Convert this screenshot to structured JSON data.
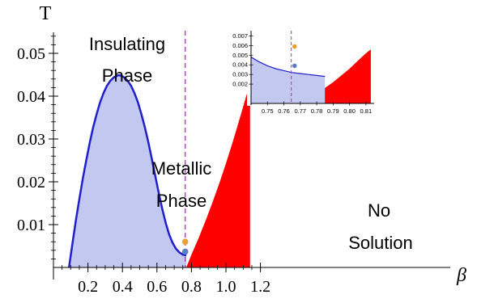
{
  "chart_data": {
    "type": "area",
    "xlabel": "β",
    "ylabel": "T",
    "xlim": [
      0,
      1.25
    ],
    "ylim": [
      0,
      0.057
    ],
    "xticks": [
      "0.2",
      "0.4",
      "0.6",
      "0.8",
      "1.0",
      "1.2"
    ],
    "yticks": [
      "0.01",
      "0.02",
      "0.03",
      "0.04",
      "0.05"
    ],
    "region_labels": {
      "insulating_line1": "Insulating",
      "insulating_line2": "Phase",
      "metallic_line1": "Metallic",
      "metallic_line2": "Phase",
      "nosolution_line1": "No",
      "nosolution_line2": "Solution"
    },
    "series": [
      {
        "kind": "boundary",
        "color": "#1f1fcc",
        "fill": "#c3c8f0",
        "x": [
          0.09,
          0.11,
          0.13,
          0.15,
          0.17,
          0.19,
          0.21,
          0.23,
          0.25,
          0.27,
          0.29,
          0.31,
          0.33,
          0.35,
          0.37,
          0.38,
          0.39,
          0.41,
          0.43,
          0.45,
          0.47,
          0.49,
          0.51,
          0.53,
          0.55,
          0.57,
          0.59,
          0.61,
          0.63,
          0.65,
          0.67,
          0.69,
          0.71,
          0.73,
          0.75,
          0.77
        ],
        "y": [
          0.0,
          0.0055,
          0.011,
          0.016,
          0.0207,
          0.025,
          0.029,
          0.0327,
          0.0358,
          0.0385,
          0.0407,
          0.0424,
          0.0436,
          0.0444,
          0.0448,
          0.0449,
          0.0448,
          0.0444,
          0.0436,
          0.0424,
          0.0407,
          0.0385,
          0.0358,
          0.0327,
          0.0292,
          0.0254,
          0.0214,
          0.0175,
          0.0138,
          0.0105,
          0.0078,
          0.0058,
          0.0044,
          0.0035,
          0.003,
          0.0028
        ]
      },
      {
        "kind": "no-solution",
        "color": "#ff0000",
        "x": [
          0.77,
          0.8,
          0.84,
          0.88,
          0.92,
          0.96,
          1.0,
          1.04,
          1.08,
          1.12,
          1.14
        ],
        "y": [
          0.0,
          0.003,
          0.0067,
          0.0107,
          0.015,
          0.0195,
          0.0243,
          0.0294,
          0.0348,
          0.0404,
          0.0405
        ]
      }
    ],
    "vline": {
      "x": 0.764,
      "color": "#9b3fa8"
    },
    "points": [
      {
        "x": 0.764,
        "y": 0.006,
        "color": "#e8a030"
      },
      {
        "x": 0.764,
        "y": 0.0037,
        "color": "#5a7ec8"
      }
    ],
    "inset": {
      "xlim": [
        0.74,
        0.815
      ],
      "ylim": [
        0.0,
        0.0072
      ],
      "xticks": [
        "0.75",
        "0.76",
        "0.77",
        "0.78",
        "0.79",
        "0.80",
        "0.81"
      ],
      "yticks": [
        "0.002",
        "0.003",
        "0.004",
        "0.005",
        "0.006",
        "0.007"
      ],
      "boundary": {
        "x": [
          0.74,
          0.745,
          0.75,
          0.755,
          0.76,
          0.765,
          0.77,
          0.775,
          0.78,
          0.785
        ],
        "y": [
          0.0048,
          0.0043,
          0.0039,
          0.0036,
          0.0034,
          0.0032,
          0.0031,
          0.003,
          0.0029,
          0.0028
        ]
      },
      "no_solution": {
        "x": [
          0.77,
          0.775,
          0.78,
          0.785,
          0.79,
          0.795,
          0.8,
          0.805,
          0.81,
          0.813
        ],
        "y": [
          0.0,
          0.0005,
          0.001,
          0.0016,
          0.0022,
          0.0029,
          0.0036,
          0.0044,
          0.0052,
          0.0056
        ]
      },
      "vline_x": 0.7645,
      "points": [
        {
          "x": 0.7665,
          "y": 0.0059,
          "color": "#e8a030"
        },
        {
          "x": 0.7665,
          "y": 0.0039,
          "color": "#5a7ec8"
        }
      ]
    }
  }
}
